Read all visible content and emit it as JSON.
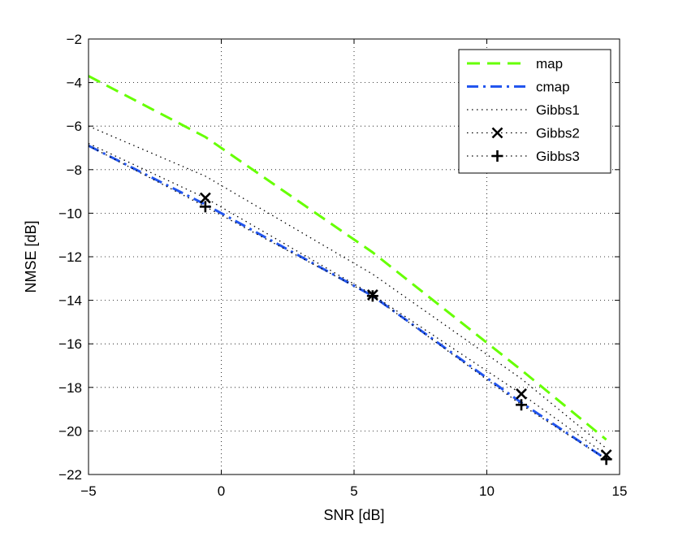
{
  "chart_data": {
    "type": "line",
    "title": "",
    "xlabel": "SNR [dB]",
    "ylabel": "NMSE [dB]",
    "xlim": [
      -5,
      15
    ],
    "ylim": [
      -22,
      -2
    ],
    "xticks": [
      -5,
      0,
      5,
      10,
      15
    ],
    "yticks": [
      -22,
      -20,
      -18,
      -16,
      -14,
      -12,
      -10,
      -8,
      -6,
      -4,
      -2
    ],
    "xtick_labels": [
      "−5",
      "0",
      "5",
      "10",
      "15"
    ],
    "ytick_labels": [
      "−22",
      "−20",
      "−18",
      "−16",
      "−14",
      "−12",
      "−10",
      "−8",
      "−6",
      "−4",
      "−2"
    ],
    "grid": true,
    "legend_position": "top-right",
    "series": [
      {
        "name": "map",
        "style": "dashed",
        "marker": "none",
        "color": "#66ff00",
        "x": [
          -5,
          -0.6,
          5.7,
          11.3,
          14.5
        ],
        "y": [
          -3.7,
          -6.5,
          -11.8,
          -17.2,
          -20.4
        ]
      },
      {
        "name": "cmap",
        "style": "dashdot",
        "marker": "none",
        "color": "#2255ee",
        "x": [
          -5,
          -0.6,
          5.7,
          11.3,
          14.5
        ],
        "y": [
          -6.9,
          -9.6,
          -13.8,
          -18.7,
          -21.3
        ]
      },
      {
        "name": "Gibbs1",
        "style": "dotted",
        "marker": "none",
        "color": "#000000",
        "x": [
          -5,
          -0.6,
          5.7,
          11.3,
          14.5
        ],
        "y": [
          -6.0,
          -8.3,
          -12.8,
          -17.6,
          -20.8
        ]
      },
      {
        "name": "Gibbs2",
        "style": "dotted",
        "marker": "x",
        "color": "#000000",
        "x": [
          -5,
          -0.6,
          5.7,
          11.3,
          14.5
        ],
        "y": [
          -6.8,
          -9.3,
          -13.75,
          -18.3,
          -21.1
        ]
      },
      {
        "name": "Gibbs3",
        "style": "dotted",
        "marker": "+",
        "color": "#000000",
        "x": [
          -5,
          -0.6,
          5.7,
          11.3,
          14.5
        ],
        "y": [
          -6.9,
          -9.7,
          -13.8,
          -18.8,
          -21.3
        ]
      }
    ]
  }
}
